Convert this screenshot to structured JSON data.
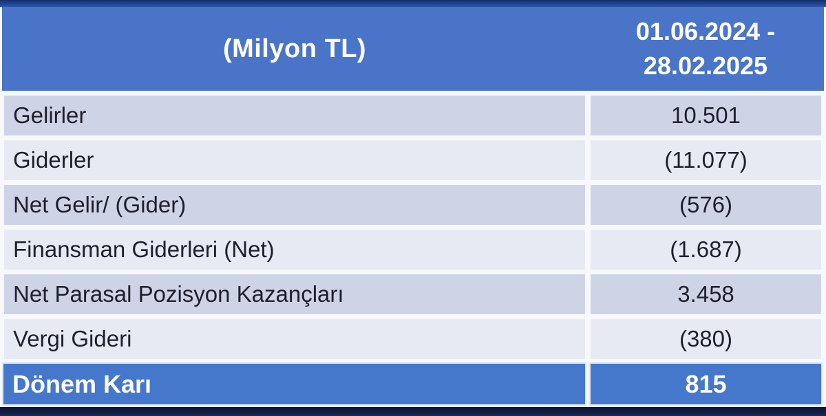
{
  "page": {
    "background": "#f7f8fb",
    "top_bar_color": "#1e418e",
    "bottom_bar_color": "#101f45"
  },
  "table": {
    "header": {
      "unit_label": "(Milyon TL)",
      "period_line1": "01.06.2024 -",
      "period_line2": "28.02.2025",
      "bg": "#4a74c8",
      "text_color": "#ffffff"
    },
    "rows": [
      {
        "label": "Gelirler",
        "value": "10.501"
      },
      {
        "label": "Giderler",
        "value": "(11.077)"
      },
      {
        "label": "Net Gelir/ (Gider)",
        "value": "(576)"
      },
      {
        "label": "Finansman Giderleri (Net)",
        "value": "(1.687)"
      },
      {
        "label": "Net Parasal Pozisyon Kazançları",
        "value": "3.458"
      },
      {
        "label": "Vergi Gideri",
        "value": "(380)"
      }
    ],
    "footer": {
      "label": "Dönem Karı",
      "value": "815"
    },
    "colors": {
      "row_dark": "#ced3e6",
      "row_light": "#e8eaf3",
      "text": "#1f1f2d",
      "accent_blue": "#4a74c8"
    }
  },
  "chart_data": {
    "type": "table",
    "title": "",
    "unit": "Milyon TL",
    "period": "01.06.2024 - 28.02.2025",
    "columns": [
      "(Milyon TL)",
      "01.06.2024 - 28.02.2025"
    ],
    "rows": [
      [
        "Gelirler",
        "10.501"
      ],
      [
        "Giderler",
        "(11.077)"
      ],
      [
        "Net Gelir/ (Gider)",
        "(576)"
      ],
      [
        "Finansman Giderleri (Net)",
        "(1.687)"
      ],
      [
        "Net Parasal Pozisyon Kazançları",
        "3.458"
      ],
      [
        "Vergi Gideri",
        "(380)"
      ],
      [
        "Dönem Karı",
        "815"
      ]
    ],
    "values_numeric": [
      10501,
      -11077,
      -576,
      -1687,
      3458,
      -380,
      815
    ]
  }
}
